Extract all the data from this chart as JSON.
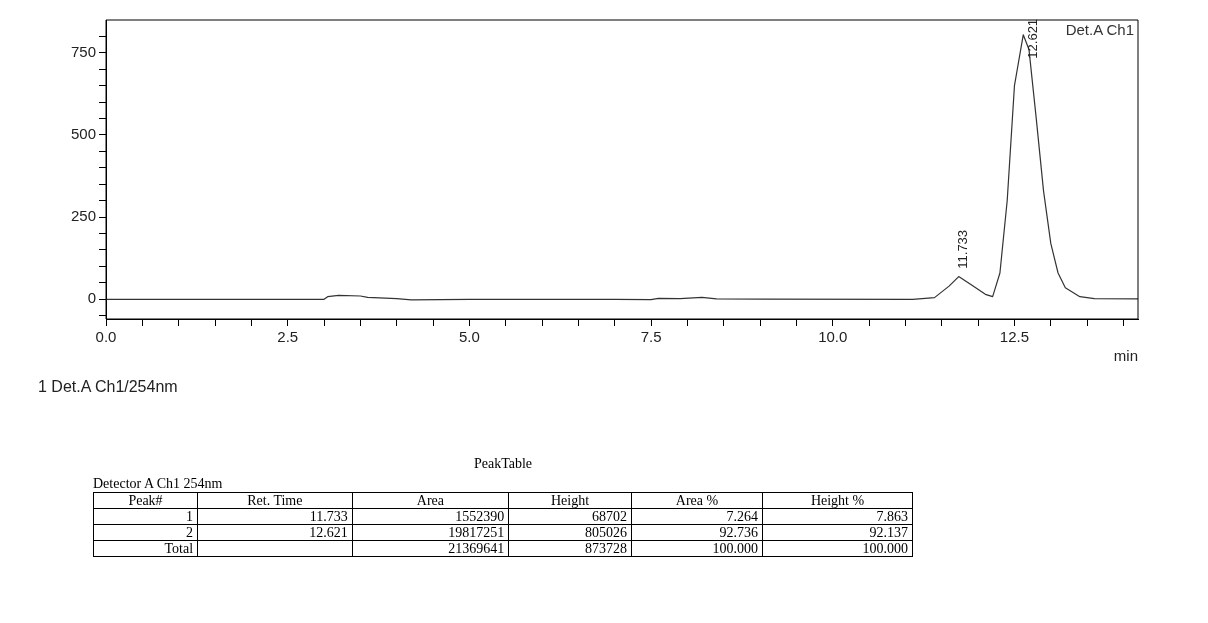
{
  "chart_data": {
    "type": "line",
    "xlabel": "min",
    "legend": "top right",
    "xlim": [
      0,
      14.2
    ],
    "ylim": [
      -60,
      850
    ],
    "xticks": [
      {
        "value": 0,
        "label": "0.0"
      },
      {
        "value": 0.5,
        "label": null
      },
      {
        "value": 1,
        "label": null
      },
      {
        "value": 1.5,
        "label": null
      },
      {
        "value": 2,
        "label": null
      },
      {
        "value": 2.5,
        "label": "2.5"
      },
      {
        "value": 3,
        "label": null
      },
      {
        "value": 3.5,
        "label": null
      },
      {
        "value": 4,
        "label": null
      },
      {
        "value": 4.5,
        "label": null
      },
      {
        "value": 5,
        "label": "5.0"
      },
      {
        "value": 5.5,
        "label": null
      },
      {
        "value": 6,
        "label": null
      },
      {
        "value": 6.5,
        "label": null
      },
      {
        "value": 7,
        "label": null
      },
      {
        "value": 7.5,
        "label": "7.5"
      },
      {
        "value": 8,
        "label": null
      },
      {
        "value": 8.5,
        "label": null
      },
      {
        "value": 9,
        "label": null
      },
      {
        "value": 9.5,
        "label": null
      },
      {
        "value": 10,
        "label": "10.0"
      },
      {
        "value": 10.5,
        "label": null
      },
      {
        "value": 11,
        "label": null
      },
      {
        "value": 11.5,
        "label": null
      },
      {
        "value": 12,
        "label": null
      },
      {
        "value": 12.5,
        "label": "12.5"
      },
      {
        "value": 13,
        "label": null
      },
      {
        "value": 13.5,
        "label": null
      },
      {
        "value": 14,
        "label": null
      }
    ],
    "yticks": [
      {
        "value": -50,
        "label": null
      },
      0,
      {
        "value": 50,
        "label": null
      },
      {
        "value": 100,
        "label": null
      },
      {
        "value": 150,
        "label": null
      },
      {
        "value": 200,
        "label": null
      },
      250,
      {
        "value": 300,
        "label": null
      },
      {
        "value": 350,
        "label": null
      },
      {
        "value": 400,
        "label": null
      },
      {
        "value": 450,
        "label": null
      },
      500,
      {
        "value": 550,
        "label": null
      },
      {
        "value": 600,
        "label": null
      },
      {
        "value": 650,
        "label": null
      },
      {
        "value": 700,
        "label": null
      },
      750,
      {
        "value": 800,
        "label": null
      }
    ],
    "grid": false,
    "marker": "none",
    "line_style": "solid",
    "series": [
      {
        "name": "Det.A Ch1",
        "color": "#333333",
        "x": [
          0,
          3.0,
          3.05,
          3.2,
          3.5,
          3.6,
          4.0,
          4.2,
          5.0,
          7.0,
          7.5,
          7.6,
          7.9,
          8.2,
          8.4,
          11.1,
          11.4,
          11.6,
          11.733,
          11.9,
          12.1,
          12.2,
          12.3,
          12.4,
          12.5,
          12.621,
          12.7,
          12.8,
          12.9,
          13.0,
          13.1,
          13.2,
          13.4,
          13.6,
          14.2
        ],
        "values": [
          0,
          0,
          8,
          12,
          10,
          6,
          2,
          -2,
          0,
          0,
          -1,
          3,
          2,
          6,
          1,
          0,
          5,
          40,
          69,
          45,
          15,
          8,
          80,
          300,
          650,
          805,
          760,
          550,
          330,
          170,
          80,
          35,
          8,
          2,
          1
        ]
      }
    ],
    "annotations": [
      {
        "text": "11.733",
        "x": 11.733,
        "y": 68.7
      },
      {
        "text": "12.621",
        "x": 12.621,
        "y": 805
      },
      "1  Det.A Ch1/254nm",
      "PeakTable",
      "Detector A Ch1 254nm",
      "Peak#\tRet. Time\tArea\tHeight\tArea %\tHeight %",
      "1\t11.733\t1552390\t68702\t7.264\t7.863",
      "2\t12.621\t19817251\t805026\t92.736\t92.137",
      "Total\t\t21369641\t873728\t100.000\t100.000"
    ]
  }
}
